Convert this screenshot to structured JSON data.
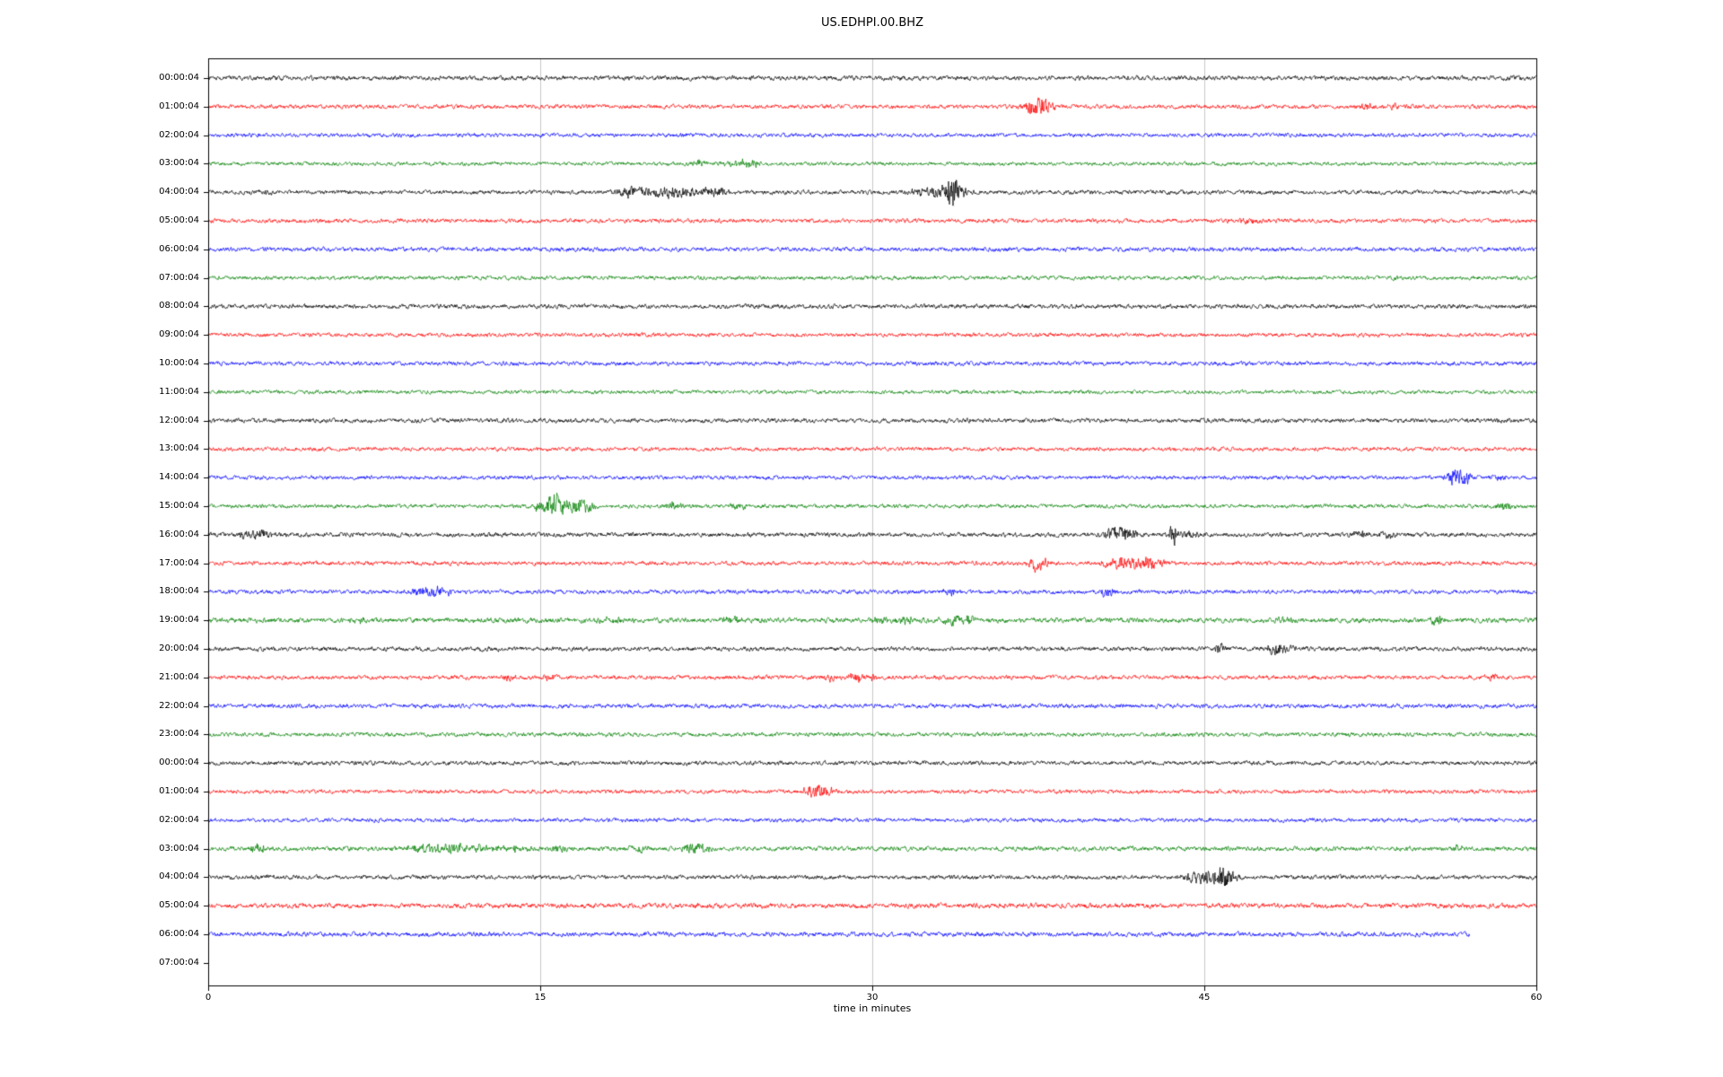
{
  "chart_data": {
    "type": "line",
    "title": "US.EDHPI.00.BHZ",
    "xlabel": "time in minutes",
    "xlim": [
      0,
      60
    ],
    "x_ticks": [
      0,
      15,
      30,
      45,
      60
    ],
    "grid_minutes": [
      15,
      30,
      45
    ],
    "grid_on": true,
    "legend": "none",
    "colors": {
      "black": "#000000",
      "red": "#ff0000",
      "blue": "#0000ff",
      "green": "#008000",
      "grid": "#c9c9c9",
      "frame": "#000000"
    },
    "rows": [
      {
        "label": "00:00:04",
        "color": "black",
        "amp": 1.2,
        "end_minute": 60,
        "events": []
      },
      {
        "label": "01:00:04",
        "color": "red",
        "amp": 1.1,
        "end_minute": 60,
        "events": [
          [
            37.3,
            8,
            0.35
          ],
          [
            37.8,
            6,
            0.3
          ],
          [
            52.3,
            3.5,
            0.25
          ],
          [
            53.5,
            2.5,
            0.25
          ]
        ]
      },
      {
        "label": "02:00:04",
        "color": "blue",
        "amp": 1.05,
        "end_minute": 60,
        "events": []
      },
      {
        "label": "03:00:04",
        "color": "green",
        "amp": 1.0,
        "end_minute": 60,
        "events": [
          [
            22.2,
            4.5,
            0.2
          ],
          [
            24.0,
            3.5,
            0.45
          ],
          [
            24.6,
            2.5,
            0.25
          ]
        ]
      },
      {
        "label": "04:00:04",
        "color": "black",
        "amp": 1.1,
        "end_minute": 60,
        "events": [
          [
            2.6,
            2.5,
            0.2
          ],
          [
            12,
            2.5,
            0.2
          ],
          [
            19,
            3.5,
            0.4
          ],
          [
            20.3,
            4.5,
            0.9
          ],
          [
            21.8,
            3.5,
            0.8
          ],
          [
            23,
            3,
            0.4
          ],
          [
            32.6,
            5,
            0.6
          ],
          [
            33.6,
            15,
            0.3
          ],
          [
            34.1,
            4,
            0.3
          ]
        ]
      },
      {
        "label": "05:00:04",
        "color": "red",
        "amp": 1.1,
        "end_minute": 60,
        "events": [
          [
            47,
            3,
            0.25
          ]
        ]
      },
      {
        "label": "06:00:04",
        "color": "blue",
        "amp": 1.15,
        "end_minute": 60,
        "events": []
      },
      {
        "label": "07:00:04",
        "color": "green",
        "amp": 1.05,
        "end_minute": 60,
        "events": [
          [
            53.5,
            2,
            0.3
          ]
        ]
      },
      {
        "label": "08:00:04",
        "color": "black",
        "amp": 1.15,
        "end_minute": 60,
        "events": []
      },
      {
        "label": "09:00:04",
        "color": "red",
        "amp": 1.05,
        "end_minute": 60,
        "events": []
      },
      {
        "label": "10:00:04",
        "color": "blue",
        "amp": 1.1,
        "end_minute": 60,
        "events": []
      },
      {
        "label": "11:00:04",
        "color": "green",
        "amp": 1.0,
        "end_minute": 60,
        "events": []
      },
      {
        "label": "12:00:04",
        "color": "black",
        "amp": 1.15,
        "end_minute": 60,
        "events": []
      },
      {
        "label": "13:00:04",
        "color": "red",
        "amp": 1.05,
        "end_minute": 60,
        "events": []
      },
      {
        "label": "14:00:04",
        "color": "blue",
        "amp": 1.05,
        "end_minute": 60,
        "events": [
          [
            56.3,
            8,
            0.3
          ],
          [
            56.8,
            6,
            0.25
          ],
          [
            58.3,
            3.5,
            0.25
          ]
        ]
      },
      {
        "label": "15:00:04",
        "color": "green",
        "amp": 1.05,
        "end_minute": 60,
        "events": [
          [
            15.2,
            8,
            0.35
          ],
          [
            15.8,
            11,
            0.25
          ],
          [
            16.6,
            7,
            0.4
          ],
          [
            17.2,
            4,
            0.3
          ],
          [
            21,
            4.5,
            0.3
          ],
          [
            24,
            2.5,
            0.3
          ],
          [
            58.5,
            4.5,
            0.3
          ]
        ]
      },
      {
        "label": "16:00:04",
        "color": "black",
        "amp": 1.15,
        "end_minute": 60,
        "events": [
          [
            1.9,
            5,
            0.35
          ],
          [
            2.6,
            4,
            0.3
          ],
          [
            41,
            8,
            0.4
          ],
          [
            41.6,
            5,
            0.35
          ],
          [
            43.6,
            13,
            0.12
          ],
          [
            44.2,
            4,
            0.4
          ],
          [
            52,
            4.5,
            0.3
          ],
          [
            53.3,
            3.5,
            0.35
          ]
        ]
      },
      {
        "label": "17:00:04",
        "color": "red",
        "amp": 1.1,
        "end_minute": 60,
        "events": [
          [
            37.5,
            9,
            0.3
          ],
          [
            41,
            6,
            0.4
          ],
          [
            41.9,
            5,
            0.4
          ],
          [
            42.5,
            4.5,
            0.25
          ],
          [
            43,
            3,
            0.3
          ]
        ]
      },
      {
        "label": "18:00:04",
        "color": "blue",
        "amp": 1.1,
        "end_minute": 60,
        "events": [
          [
            9.9,
            4.5,
            0.45
          ],
          [
            10.6,
            3.5,
            0.3
          ],
          [
            33.5,
            3.5,
            0.25
          ],
          [
            40.7,
            5,
            0.3
          ]
        ]
      },
      {
        "label": "19:00:04",
        "color": "green",
        "amp": 1.3,
        "end_minute": 60,
        "events": [
          [
            7,
            3.5,
            0.25
          ],
          [
            18.2,
            3.5,
            0.4
          ],
          [
            23.6,
            3.5,
            0.4
          ],
          [
            30.3,
            3.5,
            0.4
          ],
          [
            31.5,
            3.5,
            0.35
          ],
          [
            33.6,
            4,
            0.4
          ],
          [
            34.4,
            3.5,
            0.3
          ],
          [
            48.7,
            3.5,
            0.3
          ],
          [
            55.5,
            4.5,
            0.3
          ]
        ]
      },
      {
        "label": "20:00:04",
        "color": "black",
        "amp": 1.15,
        "end_minute": 60,
        "events": [
          [
            45.7,
            7,
            0.15
          ],
          [
            48.2,
            6,
            0.3
          ],
          [
            48.7,
            4,
            0.25
          ]
        ]
      },
      {
        "label": "21:00:04",
        "color": "red",
        "amp": 1.1,
        "end_minute": 60,
        "events": [
          [
            13.6,
            4.5,
            0.2
          ],
          [
            15.4,
            3.5,
            0.2
          ],
          [
            28,
            4.5,
            0.3
          ],
          [
            29.3,
            5,
            0.3
          ],
          [
            29.9,
            3.5,
            0.25
          ],
          [
            58,
            3.5,
            0.25
          ]
        ]
      },
      {
        "label": "22:00:04",
        "color": "blue",
        "amp": 1.15,
        "end_minute": 60,
        "events": []
      },
      {
        "label": "23:00:04",
        "color": "green",
        "amp": 1.1,
        "end_minute": 60,
        "events": []
      },
      {
        "label": "00:00:04",
        "color": "black",
        "amp": 1.1,
        "end_minute": 60,
        "events": []
      },
      {
        "label": "01:00:04",
        "color": "red",
        "amp": 1.05,
        "end_minute": 60,
        "events": [
          [
            27.3,
            6,
            0.35
          ],
          [
            27.9,
            5,
            0.3
          ]
        ]
      },
      {
        "label": "02:00:04",
        "color": "blue",
        "amp": 1.05,
        "end_minute": 60,
        "events": []
      },
      {
        "label": "03:00:04",
        "color": "green",
        "amp": 1.2,
        "end_minute": 60,
        "events": [
          [
            2.3,
            4.5,
            0.3
          ],
          [
            9.7,
            3.5,
            0.5
          ],
          [
            11,
            4.5,
            0.6
          ],
          [
            12.5,
            3.5,
            0.5
          ],
          [
            14,
            3.5,
            0.4
          ],
          [
            15.8,
            3.5,
            0.3
          ],
          [
            19.5,
            3,
            0.3
          ],
          [
            21.8,
            5.5,
            0.3
          ],
          [
            22.4,
            3.5,
            0.25
          ],
          [
            56.5,
            3.5,
            0.25
          ]
        ]
      },
      {
        "label": "04:00:04",
        "color": "black",
        "amp": 1.1,
        "end_minute": 60,
        "events": [
          [
            3,
            2.5,
            0.2
          ],
          [
            44.5,
            5,
            0.45
          ],
          [
            45.3,
            6,
            0.35
          ],
          [
            45.9,
            11,
            0.18
          ],
          [
            46.3,
            4,
            0.3
          ]
        ]
      },
      {
        "label": "05:00:04",
        "color": "red",
        "amp": 1.3,
        "end_minute": 60,
        "events": []
      },
      {
        "label": "06:00:04",
        "color": "blue",
        "amp": 1.2,
        "end_minute": 57,
        "events": []
      },
      {
        "label": "07:00:04",
        "color": "none",
        "amp": 0,
        "end_minute": 0,
        "events": []
      }
    ]
  }
}
